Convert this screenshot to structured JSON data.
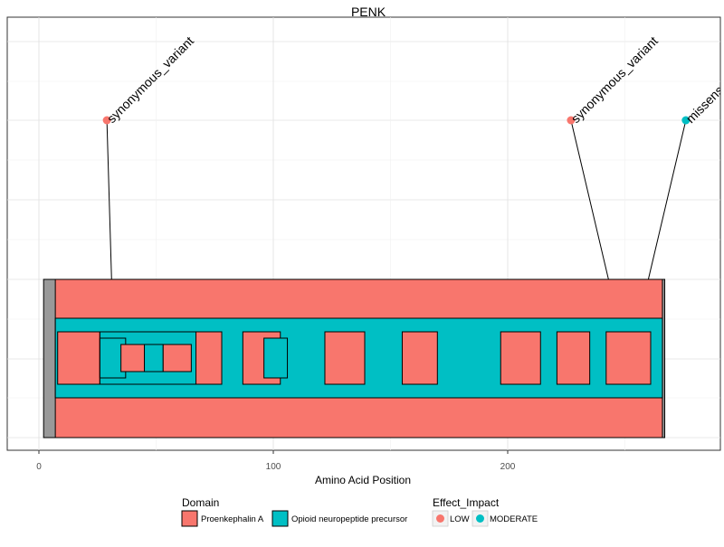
{
  "chart_data": {
    "type": "lollipop-domain",
    "title": "PENK",
    "xlabel": "Amino Acid Position",
    "ylabel": "",
    "xlim": [
      -12,
      288
    ],
    "x_ticks": [
      0,
      100,
      200
    ],
    "grid": true,
    "protein": {
      "start": 2,
      "end": 267,
      "color": "#999999"
    },
    "domains": [
      {
        "name": "Proenkephalin A",
        "start": 7,
        "end": 266,
        "color": "#F8766D",
        "level": "outer"
      },
      {
        "name": "Opioid neuropeptide precursor",
        "start": 7,
        "end": 266,
        "color": "#00BFC4",
        "level": "middle"
      },
      {
        "name": "Proenkephalin A",
        "start": 8,
        "end": 26,
        "color": "#F8766D",
        "level": "inner"
      },
      {
        "name": "Opioid neuropeptide precursor",
        "start": 26,
        "end": 37,
        "color": "#00BFC4",
        "level": "inner"
      },
      {
        "name": "Opioid neuropeptide precursor",
        "start": 26,
        "end": 70,
        "color": "#00BFC4",
        "level": "inner"
      },
      {
        "name": "Proenkephalin A",
        "start": 35,
        "end": 45,
        "color": "#F8766D",
        "level": "inner"
      },
      {
        "name": "Opioid neuropeptide precursor",
        "start": 45,
        "end": 53,
        "color": "#00BFC4",
        "level": "inner"
      },
      {
        "name": "Proenkephalin A",
        "start": 53,
        "end": 65,
        "color": "#F8766D",
        "level": "inner"
      },
      {
        "name": "Proenkephalin A",
        "start": 67,
        "end": 78,
        "color": "#F8766D",
        "level": "inner"
      },
      {
        "name": "Proenkephalin A",
        "start": 87,
        "end": 103,
        "color": "#F8766D",
        "level": "inner"
      },
      {
        "name": "Opioid neuropeptide precursor",
        "start": 96,
        "end": 106,
        "color": "#00BFC4",
        "level": "inner"
      },
      {
        "name": "Proenkephalin A",
        "start": 122,
        "end": 139,
        "color": "#F8766D",
        "level": "inner"
      },
      {
        "name": "Proenkephalin A",
        "start": 155,
        "end": 170,
        "color": "#F8766D",
        "level": "inner"
      },
      {
        "name": "Proenkephalin A",
        "start": 197,
        "end": 214,
        "color": "#F8766D",
        "level": "inner"
      },
      {
        "name": "Proenkephalin A",
        "start": 221,
        "end": 235,
        "color": "#F8766D",
        "level": "inner"
      },
      {
        "name": "Proenkephalin A",
        "start": 242,
        "end": 261,
        "color": "#F8766D",
        "level": "inner"
      }
    ],
    "variants": [
      {
        "position": 31,
        "label_position": 29,
        "label": "synonymous_variant",
        "impact": "LOW",
        "color": "#F8766D"
      },
      {
        "position": 243,
        "label_position": 227,
        "label": "synonymous_variant",
        "impact": "LOW",
        "color": "#F8766D"
      },
      {
        "position": 260,
        "label_position": 276,
        "label": "missense_variant",
        "impact": "MODERATE",
        "color": "#00BFC4"
      }
    ],
    "legend": {
      "placement": "bottom",
      "domain_title": "Domain",
      "domain_items": [
        {
          "label": "Proenkephalin A",
          "color": "#F8766D"
        },
        {
          "label": "Opioid neuropeptide precursor",
          "color": "#00BFC4"
        }
      ],
      "impact_title": "Effect_Impact",
      "impact_items": [
        {
          "label": "LOW",
          "color": "#F8766D"
        },
        {
          "label": "MODERATE",
          "color": "#00BFC4"
        }
      ]
    }
  }
}
